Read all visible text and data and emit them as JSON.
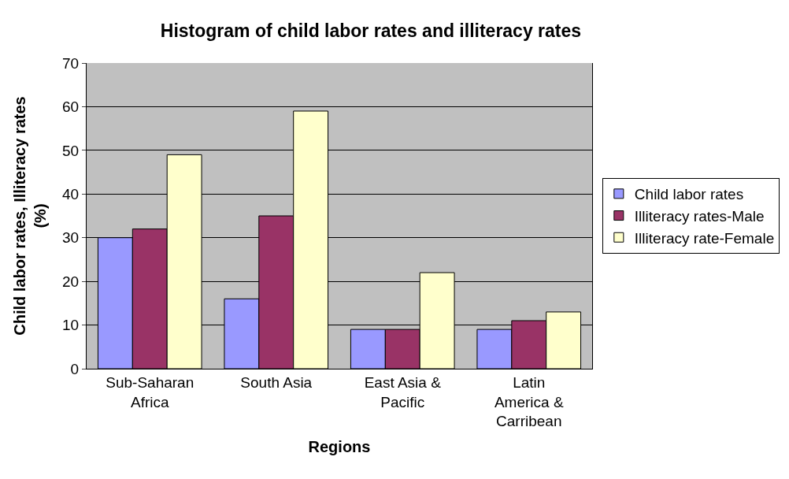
{
  "chart_data": {
    "type": "bar",
    "title": "Histogram of child labor rates and illiteracy rates",
    "xlabel": "Regions",
    "ylabel": "Child labor rates, Illiteracy rates (%)",
    "categories": [
      "Sub-Saharan Africa",
      "South Asia",
      "East Asia & Pacific",
      "Latin America & Carribean"
    ],
    "series": [
      {
        "name": "Child labor rates",
        "color": "#9999ff",
        "values": [
          30,
          16,
          9,
          9
        ]
      },
      {
        "name": "Illiteracy rates-Male",
        "color": "#993366",
        "values": [
          32,
          35,
          9,
          11
        ]
      },
      {
        "name": "Illiteracy rate-Female",
        "color": "#ffffcc",
        "values": [
          49,
          59,
          22,
          13
        ]
      }
    ],
    "ylim": [
      0,
      70
    ],
    "yticks": [
      0,
      10,
      20,
      30,
      40,
      50,
      60,
      70
    ],
    "grid": "y",
    "legend": "right"
  }
}
